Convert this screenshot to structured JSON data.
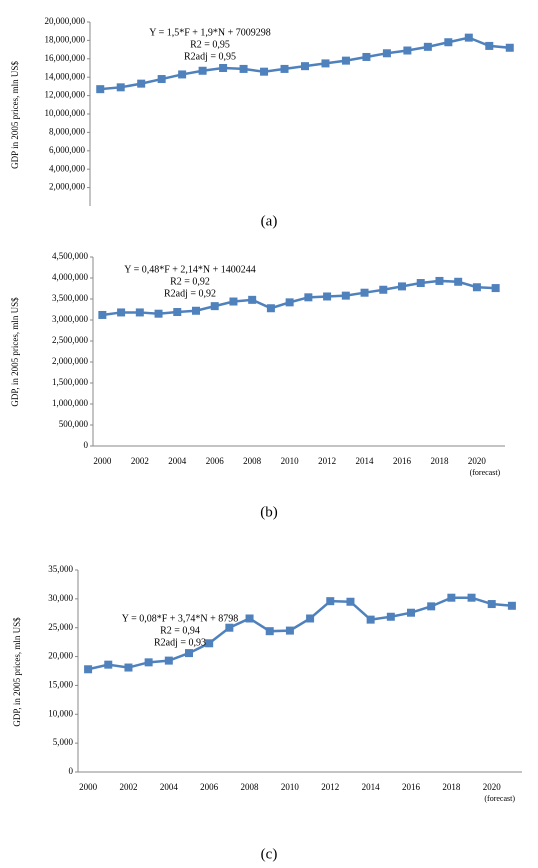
{
  "chart_data": [
    {
      "type": "line",
      "caption": "(a)",
      "y_label": "GDP in 2005 prices, mln US$",
      "annotation": [
        "Y = 1,5*F + 1,9*N + 7009298",
        "R2 = 0,95",
        "R2adj = 0,95"
      ],
      "categories": [
        null,
        null,
        null,
        null,
        null,
        null,
        null,
        null,
        null,
        null,
        null,
        null,
        null,
        null,
        null,
        null,
        null,
        null,
        null,
        null,
        null
      ],
      "values": [
        12700000,
        12900000,
        13300000,
        13800000,
        14300000,
        14700000,
        15000000,
        14900000,
        14600000,
        14900000,
        15200000,
        15500000,
        15800000,
        16200000,
        16600000,
        16900000,
        17300000,
        17800000,
        18300000,
        17400000,
        17200000
      ],
      "color": "#4f81bd",
      "ylim": [
        0,
        20000000
      ],
      "yticks": [
        {
          "value": 2000000,
          "label": "2,000,000"
        },
        {
          "value": 4000000,
          "label": "4,000,000"
        },
        {
          "value": 6000000,
          "label": "6,000,000"
        },
        {
          "value": 8000000,
          "label": "8,000,000"
        },
        {
          "value": 10000000,
          "label": "10,000,000"
        },
        {
          "value": 12000000,
          "label": "12,000,000"
        },
        {
          "value": 14000000,
          "label": "14,000,000"
        },
        {
          "value": 16000000,
          "label": "16,000,000"
        },
        {
          "value": 18000000,
          "label": "18,000,000"
        },
        {
          "value": 20000000,
          "label": "20,000,000"
        }
      ]
    },
    {
      "type": "line",
      "caption": "(b)",
      "y_label": "GDP, in 2005 prices, mln US$",
      "annotation": [
        "Y = 0,48*F + 2,14*N + 1400244",
        "R2 = 0,92",
        "R2adj = 0,92"
      ],
      "forecast_note": "(forecast)",
      "categories": [
        "2000",
        null,
        "2002",
        null,
        "2004",
        null,
        "2006",
        null,
        "2008",
        null,
        "2010",
        null,
        "2012",
        null,
        "2014",
        null,
        "2016",
        null,
        "2018",
        null,
        "2020",
        null
      ],
      "values": [
        3120000,
        3180000,
        3180000,
        3150000,
        3190000,
        3220000,
        3330000,
        3440000,
        3480000,
        3280000,
        3420000,
        3540000,
        3560000,
        3580000,
        3650000,
        3720000,
        3800000,
        3880000,
        3930000,
        3910000,
        3780000,
        3760000
      ],
      "color": "#4f81bd",
      "ylim": [
        0,
        4500000
      ],
      "yticks": [
        0,
        {
          "value": 500000,
          "label": "500,000"
        },
        {
          "value": 1000000,
          "label": "1,000,000"
        },
        {
          "value": 1500000,
          "label": "1,500,000"
        },
        {
          "value": 2000000,
          "label": "2,000,000"
        },
        {
          "value": 2500000,
          "label": "2,500,000"
        },
        {
          "value": 3000000,
          "label": "3,000,000"
        },
        {
          "value": 3500000,
          "label": "3,500,000"
        },
        {
          "value": 4000000,
          "label": "4,000,000"
        },
        {
          "value": 4500000,
          "label": "4,500,000"
        }
      ]
    },
    {
      "type": "line",
      "caption": "(c)",
      "y_label": "GDP, in 2005 prices, mln US$",
      "annotation": [
        "Y = 0,08*F + 3,74*N + 8798",
        "R2 = 0,94",
        "R2adj = 0,93"
      ],
      "forecast_note": "(forecast)",
      "categories": [
        "2000",
        null,
        "2002",
        null,
        "2004",
        null,
        "2006",
        null,
        "2008",
        null,
        "2010",
        null,
        "2012",
        null,
        "2014",
        null,
        "2016",
        null,
        "2018",
        null,
        "2020",
        null
      ],
      "values": [
        17800,
        18600,
        18100,
        19000,
        19300,
        20600,
        22300,
        25000,
        26600,
        24400,
        24500,
        26600,
        29600,
        29500,
        26400,
        26900,
        27600,
        28700,
        30200,
        30200,
        29100,
        28800
      ],
      "color": "#4f81bd",
      "ylim": [
        0,
        35000
      ],
      "yticks": [
        0,
        {
          "value": 5000,
          "label": "5,000"
        },
        {
          "value": 10000,
          "label": "10,000"
        },
        {
          "value": 15000,
          "label": "15,000"
        },
        {
          "value": 20000,
          "label": "20,000"
        },
        {
          "value": 25000,
          "label": "25,000"
        },
        {
          "value": 30000,
          "label": "30,000"
        },
        {
          "value": 35000,
          "label": "35,000"
        }
      ]
    }
  ]
}
